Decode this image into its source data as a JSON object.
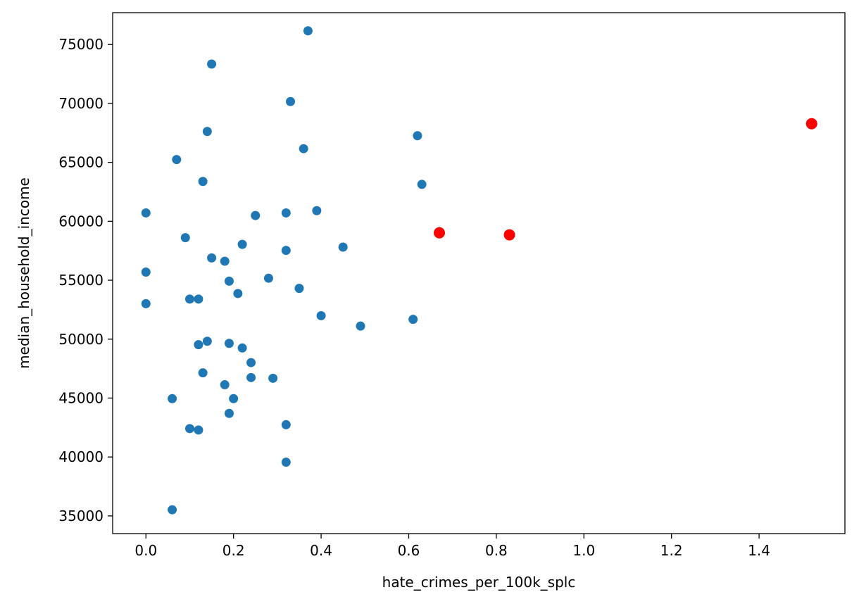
{
  "chart_data": {
    "type": "scatter",
    "title": "",
    "xlabel": "hate_crimes_per_100k_splc",
    "ylabel": "median_household_income",
    "xlim": [
      -0.076,
      1.596
    ],
    "ylim": [
      33500,
      77700
    ],
    "grid": false,
    "x_ticks": [
      0.0,
      0.2,
      0.4,
      0.6,
      0.8,
      1.0,
      1.2,
      1.4
    ],
    "x_tick_labels": [
      "0.0",
      "0.2",
      "0.4",
      "0.6",
      "0.8",
      "1.0",
      "1.2",
      "1.4"
    ],
    "y_ticks": [
      35000,
      40000,
      45000,
      50000,
      55000,
      60000,
      65000,
      70000,
      75000
    ],
    "y_tick_labels": [
      "35000",
      "40000",
      "45000",
      "50000",
      "55000",
      "60000",
      "65000",
      "70000",
      "75000"
    ],
    "series": [
      {
        "color": "#1f77b4",
        "points": [
          [
            0.37,
            76160
          ],
          [
            0.15,
            73340
          ],
          [
            0.33,
            70160
          ],
          [
            0.14,
            67620
          ],
          [
            0.62,
            67260
          ],
          [
            0.36,
            66160
          ],
          [
            0.07,
            65240
          ],
          [
            0.13,
            63380
          ],
          [
            0.63,
            63130
          ],
          [
            0.39,
            60900
          ],
          [
            0.0,
            60710
          ],
          [
            0.32,
            60710
          ],
          [
            0.25,
            60490
          ],
          [
            0.09,
            58610
          ],
          [
            0.22,
            58040
          ],
          [
            0.45,
            57810
          ],
          [
            0.32,
            57530
          ],
          [
            0.15,
            56890
          ],
          [
            0.18,
            56610
          ],
          [
            0.0,
            55690
          ],
          [
            0.28,
            55170
          ],
          [
            0.19,
            54920
          ],
          [
            0.35,
            54310
          ],
          [
            0.21,
            53870
          ],
          [
            0.1,
            53400
          ],
          [
            0.12,
            53400
          ],
          [
            0.0,
            53010
          ],
          [
            0.4,
            51990
          ],
          [
            0.61,
            51680
          ],
          [
            0.49,
            51110
          ],
          [
            0.14,
            49820
          ],
          [
            0.19,
            49640
          ],
          [
            0.12,
            49530
          ],
          [
            0.22,
            49250
          ],
          [
            0.24,
            48010
          ],
          [
            0.13,
            47140
          ],
          [
            0.24,
            46740
          ],
          [
            0.29,
            46680
          ],
          [
            0.18,
            46130
          ],
          [
            0.06,
            44950
          ],
          [
            0.2,
            44950
          ],
          [
            0.19,
            43700
          ],
          [
            0.32,
            42740
          ],
          [
            0.1,
            42410
          ],
          [
            0.12,
            42290
          ],
          [
            0.32,
            39560
          ],
          [
            0.06,
            35520
          ]
        ]
      },
      {
        "color": "#ff0000",
        "points": [
          [
            1.52,
            68280
          ],
          [
            0.67,
            59020
          ],
          [
            0.83,
            58850
          ]
        ]
      }
    ]
  }
}
